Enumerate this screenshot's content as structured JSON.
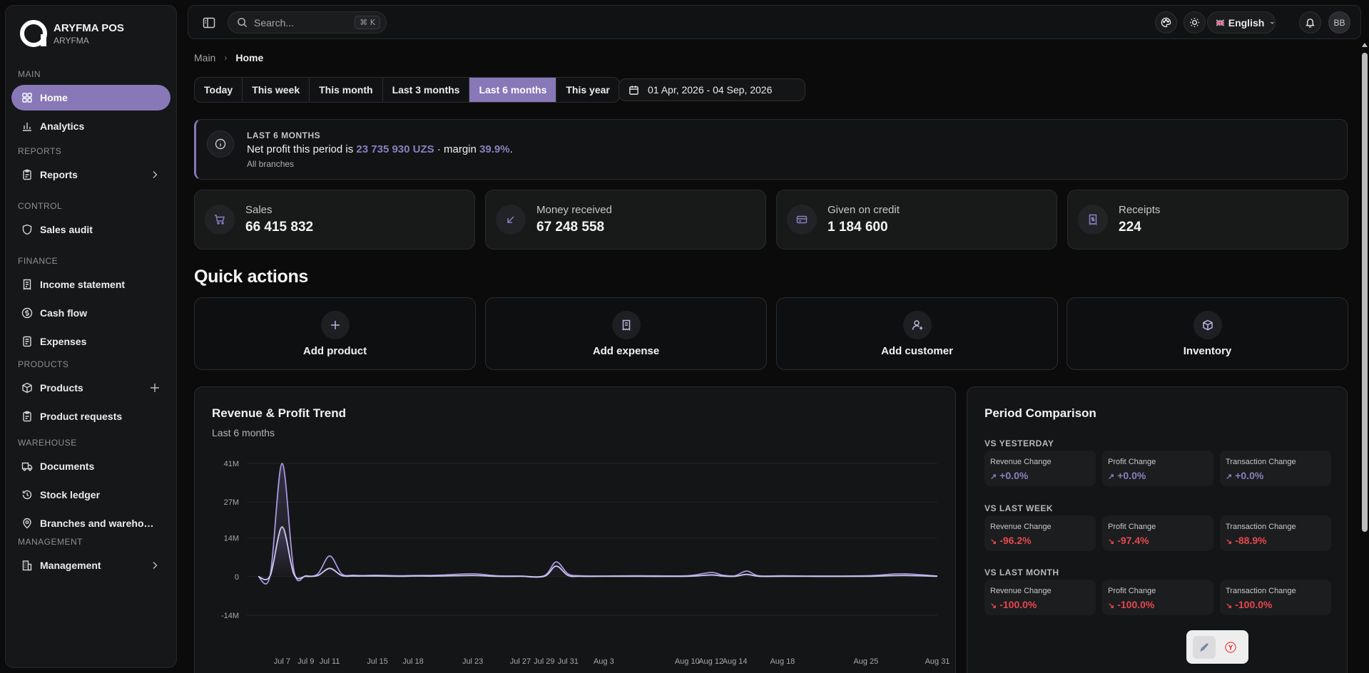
{
  "brand": {
    "name": "ARYFMA POS",
    "sub": "ARYFMA"
  },
  "sidebar": {
    "sections": [
      {
        "label": "MAIN",
        "items": [
          {
            "label": "Home",
            "icon": "grid-icon",
            "active": true
          },
          {
            "label": "Analytics",
            "icon": "bar-chart-icon"
          }
        ]
      },
      {
        "label": "REPORTS",
        "items": [
          {
            "label": "Reports",
            "icon": "clipboard-icon",
            "trail": "chevron-right-icon"
          }
        ]
      },
      {
        "label": "CONTROL",
        "items": [
          {
            "label": "Sales audit",
            "icon": "shield-icon"
          }
        ]
      },
      {
        "label": "FINANCE",
        "items": [
          {
            "label": "Income statement",
            "icon": "receipt-icon"
          },
          {
            "label": "Cash flow",
            "icon": "dollar-circle-icon"
          },
          {
            "label": "Expenses",
            "icon": "document-list-icon"
          }
        ]
      },
      {
        "label": "PRODUCTS",
        "items": [
          {
            "label": "Products",
            "icon": "box-icon",
            "trail": "plus-icon"
          },
          {
            "label": "Product requests",
            "icon": "clipboard-icon"
          }
        ]
      },
      {
        "label": "WAREHOUSE",
        "items": [
          {
            "label": "Documents",
            "icon": "truck-icon"
          },
          {
            "label": "Stock ledger",
            "icon": "history-icon"
          },
          {
            "label": "Branches and warehou...",
            "icon": "map-pin-icon"
          }
        ]
      },
      {
        "label": "MANAGEMENT",
        "items": [
          {
            "label": "Management",
            "icon": "building-icon",
            "trail": "chevron-right-icon"
          }
        ]
      }
    ]
  },
  "topbar": {
    "search_placeholder": "Search...",
    "search_shortcut": "⌘ K",
    "language": "English",
    "avatar_initials": "BB"
  },
  "breadcrumb": {
    "root": "Main",
    "current": "Home"
  },
  "periods": [
    "Today",
    "This week",
    "This month",
    "Last 3 months",
    "Last 6 months",
    "This year"
  ],
  "active_period": "Last 6 months",
  "date_range": "01 Apr, 2026 - 04 Sep, 2026",
  "banner": {
    "eyebrow": "LAST 6 MONTHS",
    "prefix": "Net profit this period is ",
    "profit": "23 735 930 UZS",
    "mid": " · margin ",
    "margin": "39.9%",
    "suffix": ".",
    "sub": "All branches"
  },
  "kpis": [
    {
      "label": "Sales",
      "value": "66 415 832",
      "icon": "cart-icon"
    },
    {
      "label": "Money received",
      "value": "67 248 558",
      "icon": "arrow-down-left-icon"
    },
    {
      "label": "Given on credit",
      "value": "1 184 600",
      "icon": "credit-card-icon"
    },
    {
      "label": "Receipts",
      "value": "224",
      "icon": "receipt-icon"
    }
  ],
  "quick_actions": {
    "title": "Quick actions",
    "items": [
      {
        "label": "Add product",
        "icon": "plus-icon"
      },
      {
        "label": "Add expense",
        "icon": "receipt-icon"
      },
      {
        "label": "Add customer",
        "icon": "user-plus-icon"
      },
      {
        "label": "Inventory",
        "icon": "box-icon"
      }
    ]
  },
  "chart": {
    "title": "Revenue & Profit Trend",
    "subtitle": "Last 6 months"
  },
  "chart_data": {
    "type": "line",
    "x": [
      "Jul 5",
      "Jul 6",
      "Jul 7",
      "Jul 8",
      "Jul 9",
      "Jul 10",
      "Jul 11",
      "Jul 12",
      "Jul 13",
      "Jul 14",
      "Jul 15",
      "Jul 17",
      "Jul 18",
      "Jul 20",
      "Jul 23",
      "Jul 25",
      "Jul 27",
      "Jul 29",
      "Jul 30",
      "Jul 31",
      "Aug 1",
      "Aug 3",
      "Aug 6",
      "Aug 10",
      "Aug 12",
      "Aug 13",
      "Aug 14",
      "Aug 15",
      "Aug 16",
      "Aug 18",
      "Aug 20",
      "Aug 25",
      "Aug 28",
      "Aug 31"
    ],
    "x_tick_labels": [
      "Jul 7",
      "Jul 9",
      "Jul 11",
      "Jul 15",
      "Jul 18",
      "Jul 23",
      "Jul 27",
      "Jul 29",
      "Jul 31",
      "Aug 3",
      "Aug 10",
      "Aug 12",
      "Aug 14",
      "Aug 18",
      "Aug 25",
      "Aug 31"
    ],
    "series": [
      {
        "values": [
          0,
          0.5,
          41,
          2,
          0.3,
          1,
          7.5,
          1,
          0.5,
          0.4,
          0.5,
          0.3,
          0.4,
          0.5,
          1,
          0.3,
          0.2,
          0.3,
          5.3,
          1,
          0.3,
          0.2,
          0.3,
          0.3,
          1.5,
          0.5,
          0.3,
          2,
          0.3,
          0.3,
          0.2,
          0.3,
          1,
          0.2
        ],
        "color": "#a897e0"
      },
      {
        "values": [
          0,
          0.3,
          18,
          0.8,
          0.1,
          0.4,
          3,
          0.4,
          0.2,
          0.2,
          0.2,
          0.1,
          0.2,
          0.2,
          0.4,
          0.1,
          0.1,
          0.1,
          3.8,
          0.4,
          0.1,
          0.1,
          0.1,
          0.1,
          0.6,
          0.2,
          0.1,
          0.8,
          0.1,
          0.1,
          0.1,
          0.1,
          0.4,
          0.1
        ],
        "color": "#cfc7ef"
      }
    ],
    "y_tick_labels": [
      "41M",
      "27M",
      "14M",
      "0",
      "-14M"
    ],
    "ylim": [
      -14,
      41
    ],
    "grid": true
  },
  "comparison": {
    "title": "Period Comparison",
    "groups": [
      {
        "label": "VS YESTERDAY",
        "cells": [
          {
            "label": "Revenue Change",
            "value": "+0.0%",
            "dir": "up"
          },
          {
            "label": "Profit Change",
            "value": "+0.0%",
            "dir": "up"
          },
          {
            "label": "Transaction Change",
            "value": "+0.0%",
            "dir": "up"
          }
        ]
      },
      {
        "label": "VS LAST WEEK",
        "cells": [
          {
            "label": "Revenue Change",
            "value": "-96.2%",
            "dir": "down"
          },
          {
            "label": "Profit Change",
            "value": "-97.4%",
            "dir": "down"
          },
          {
            "label": "Transaction Change",
            "value": "-88.9%",
            "dir": "down"
          }
        ]
      },
      {
        "label": "VS LAST MONTH",
        "cells": [
          {
            "label": "Revenue Change",
            "value": "-100.0%",
            "dir": "down"
          },
          {
            "label": "Profit Change",
            "value": "-100.0%",
            "dir": "down"
          },
          {
            "label": "Transaction Change",
            "value": "-100.0%",
            "dir": "down"
          }
        ]
      }
    ]
  },
  "colors": {
    "accent": "#8878b8",
    "down": "#e5484d",
    "up": "#8b7fc0"
  }
}
